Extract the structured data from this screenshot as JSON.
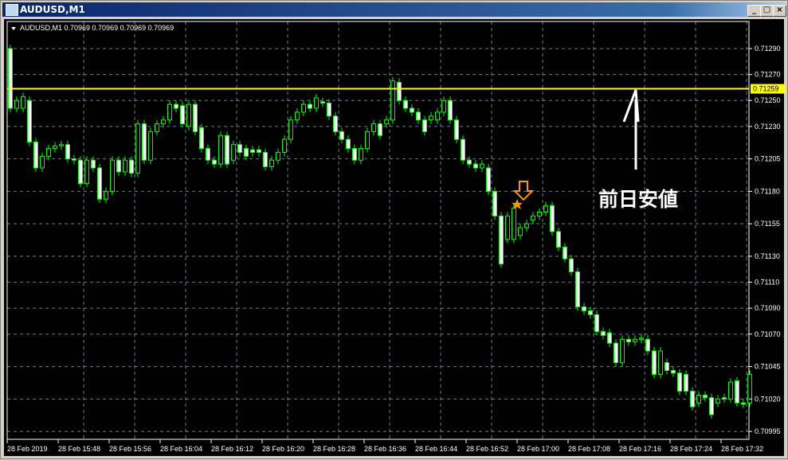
{
  "window": {
    "title": "AUDUSD,M1",
    "buttons": {
      "minimize": "_",
      "maximize": "□",
      "close": "×"
    }
  },
  "chart_data": {
    "type": "candlestick",
    "symbol_header": "AUDUSD,M1  0.70969 0.70969 0.70969 0.70969",
    "price_ticks": [
      "0.71290",
      "0.71270",
      "0.71250",
      "0.71230",
      "0.71205",
      "0.71180",
      "0.71155",
      "0.71130",
      "0.71110",
      "0.71090",
      "0.71070",
      "0.71045",
      "0.71020",
      "0.70995"
    ],
    "time_ticks": [
      "28 Feb 2019",
      "28 Feb 15:48",
      "28 Feb 15:56",
      "28 Feb 16:04",
      "28 Feb 16:12",
      "28 Feb 16:20",
      "28 Feb 16:28",
      "28 Feb 16:36",
      "28 Feb 16:44",
      "28 Feb 16:52",
      "28 Feb 17:00",
      "28 Feb 17:08",
      "28 Feb 17:16",
      "28 Feb 17:24",
      "28 Feb 17:32"
    ],
    "ylim": [
      0.7099,
      0.7131
    ],
    "grid": true,
    "horizontal_line": {
      "price": "0.71259",
      "color": "#ffff00"
    },
    "annotation_text": "前日安値",
    "colors": {
      "background": "#000000",
      "candle_outline": "#00ff00",
      "bear_body": "#ffffff",
      "bull_body": "#000000",
      "grid": "#708090",
      "marker": "#ff9900"
    },
    "open_close": [
      [
        0.7129,
        0.71244
      ],
      [
        0.71244,
        0.7125
      ],
      [
        0.71244,
        0.71253
      ],
      [
        0.7125,
        0.71218
      ],
      [
        0.71218,
        0.71198
      ],
      [
        0.71198,
        0.71207
      ],
      [
        0.71207,
        0.71213
      ],
      [
        0.71213,
        0.71215
      ],
      [
        0.71215,
        0.71216
      ],
      [
        0.71216,
        0.71205
      ],
      [
        0.71205,
        0.71204
      ],
      [
        0.71204,
        0.71186
      ],
      [
        0.71186,
        0.71204
      ],
      [
        0.71204,
        0.71198
      ],
      [
        0.71198,
        0.71174
      ],
      [
        0.71174,
        0.7118
      ],
      [
        0.7118,
        0.71204
      ],
      [
        0.71204,
        0.71195
      ],
      [
        0.71195,
        0.71204
      ],
      [
        0.71204,
        0.71194
      ],
      [
        0.71194,
        0.71232
      ],
      [
        0.71232,
        0.71204
      ],
      [
        0.71204,
        0.71226
      ],
      [
        0.71226,
        0.71232
      ],
      [
        0.71232,
        0.71235
      ],
      [
        0.71235,
        0.71247
      ],
      [
        0.71247,
        0.71244
      ],
      [
        0.71246,
        0.71232
      ],
      [
        0.7123,
        0.71247
      ],
      [
        0.71247,
        0.71226
      ],
      [
        0.71229,
        0.71213
      ],
      [
        0.71213,
        0.71204
      ],
      [
        0.71204,
        0.71201
      ],
      [
        0.71201,
        0.71223
      ],
      [
        0.71223,
        0.71201
      ],
      [
        0.71204,
        0.71216
      ],
      [
        0.71216,
        0.7121
      ],
      [
        0.71213,
        0.71207
      ],
      [
        0.71212,
        0.7121
      ],
      [
        0.71212,
        0.7121
      ],
      [
        0.7121,
        0.71199
      ],
      [
        0.71199,
        0.71204
      ],
      [
        0.71204,
        0.7121
      ],
      [
        0.7121,
        0.7122
      ],
      [
        0.7122,
        0.71235
      ],
      [
        0.71235,
        0.71241
      ],
      [
        0.71241,
        0.71247
      ],
      [
        0.71247,
        0.71244
      ],
      [
        0.71244,
        0.71252
      ],
      [
        0.71249,
        0.71248
      ],
      [
        0.71248,
        0.71238
      ],
      [
        0.71238,
        0.71226
      ],
      [
        0.71226,
        0.7122
      ],
      [
        0.7122,
        0.71213
      ],
      [
        0.71213,
        0.71204
      ],
      [
        0.71204,
        0.71213
      ],
      [
        0.71213,
        0.71226
      ],
      [
        0.71226,
        0.71232
      ],
      [
        0.71232,
        0.71223
      ],
      [
        0.71232,
        0.71235
      ],
      [
        0.71235,
        0.71265
      ],
      [
        0.71264,
        0.7125
      ],
      [
        0.7125,
        0.71244
      ],
      [
        0.71244,
        0.71241
      ],
      [
        0.71241,
        0.71235
      ],
      [
        0.71235,
        0.71226
      ],
      [
        0.71235,
        0.71238
      ],
      [
        0.71235,
        0.71241
      ],
      [
        0.71241,
        0.7125
      ],
      [
        0.7125,
        0.71235
      ],
      [
        0.71235,
        0.7122
      ],
      [
        0.7122,
        0.71204
      ],
      [
        0.71204,
        0.71201
      ],
      [
        0.71201,
        0.71198
      ],
      [
        0.71198,
        0.71201
      ],
      [
        0.71198,
        0.7118
      ],
      [
        0.7118,
        0.71161
      ],
      [
        0.71161,
        0.71124
      ],
      [
        0.71143,
        0.71161
      ],
      [
        0.71143,
        0.71167
      ],
      [
        0.71146,
        0.71152
      ],
      [
        0.71152,
        0.71155
      ],
      [
        0.71158,
        0.71161
      ],
      [
        0.71161,
        0.71164
      ],
      [
        0.71164,
        0.71169
      ],
      [
        0.71169,
        0.71149
      ],
      [
        0.71149,
        0.71137
      ],
      [
        0.71137,
        0.71128
      ],
      [
        0.71128,
        0.71118
      ],
      [
        0.71118,
        0.71091
      ],
      [
        0.71091,
        0.71088
      ],
      [
        0.71088,
        0.71085
      ],
      [
        0.71085,
        0.71072
      ],
      [
        0.71072,
        0.71069
      ],
      [
        0.71071,
        0.71063
      ],
      [
        0.71063,
        0.71048
      ],
      [
        0.71048,
        0.71066
      ],
      [
        0.71066,
        0.71064
      ],
      [
        0.71064,
        0.71066
      ],
      [
        0.71066,
        0.71067
      ],
      [
        0.71066,
        0.71057
      ],
      [
        0.71057,
        0.71039
      ],
      [
        0.71039,
        0.71057
      ],
      [
        0.71048,
        0.71042
      ],
      [
        0.71042,
        0.7104
      ],
      [
        0.7104,
        0.71026
      ],
      [
        0.71039,
        0.71026
      ],
      [
        0.71026,
        0.71014
      ],
      [
        0.71017,
        0.71023
      ],
      [
        0.71023,
        0.71021
      ],
      [
        0.71021,
        0.71008
      ],
      [
        0.71017,
        0.7102
      ],
      [
        0.71021,
        0.7102
      ],
      [
        0.7102,
        0.71033
      ],
      [
        0.71034,
        0.71017
      ],
      [
        0.71017,
        0.71016
      ],
      [
        0.71017,
        0.71039
      ]
    ]
  }
}
